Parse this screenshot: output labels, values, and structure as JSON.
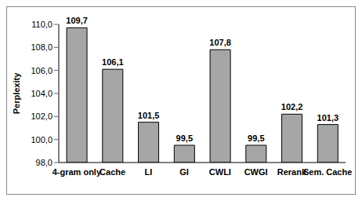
{
  "chart_data": {
    "type": "bar",
    "y_label": "Perplexity",
    "categories": [
      "4-gram only",
      "Cache",
      "LI",
      "GI",
      "CWLI",
      "CWGI",
      "Rerank",
      "Sem. Cache"
    ],
    "values": [
      109.7,
      106.1,
      101.5,
      99.5,
      107.8,
      99.5,
      102.2,
      101.3
    ],
    "value_labels": [
      "109,7",
      "106,1",
      "101,5",
      "99,5",
      "107,8",
      "99,5",
      "102,2",
      "101,3"
    ],
    "color": "#a6a6a6",
    "ylim": [
      98,
      110
    ],
    "yticks": [
      {
        "value": 98,
        "label": "98,0"
      },
      {
        "value": 100,
        "label": "100,0"
      },
      {
        "value": 102,
        "label": "102,0"
      },
      {
        "value": 104,
        "label": "104,0"
      },
      {
        "value": 106,
        "label": "106,0"
      },
      {
        "value": 108,
        "label": "108,0"
      },
      {
        "value": 110,
        "label": "110,0"
      }
    ],
    "grid": false,
    "data_labels": true
  }
}
